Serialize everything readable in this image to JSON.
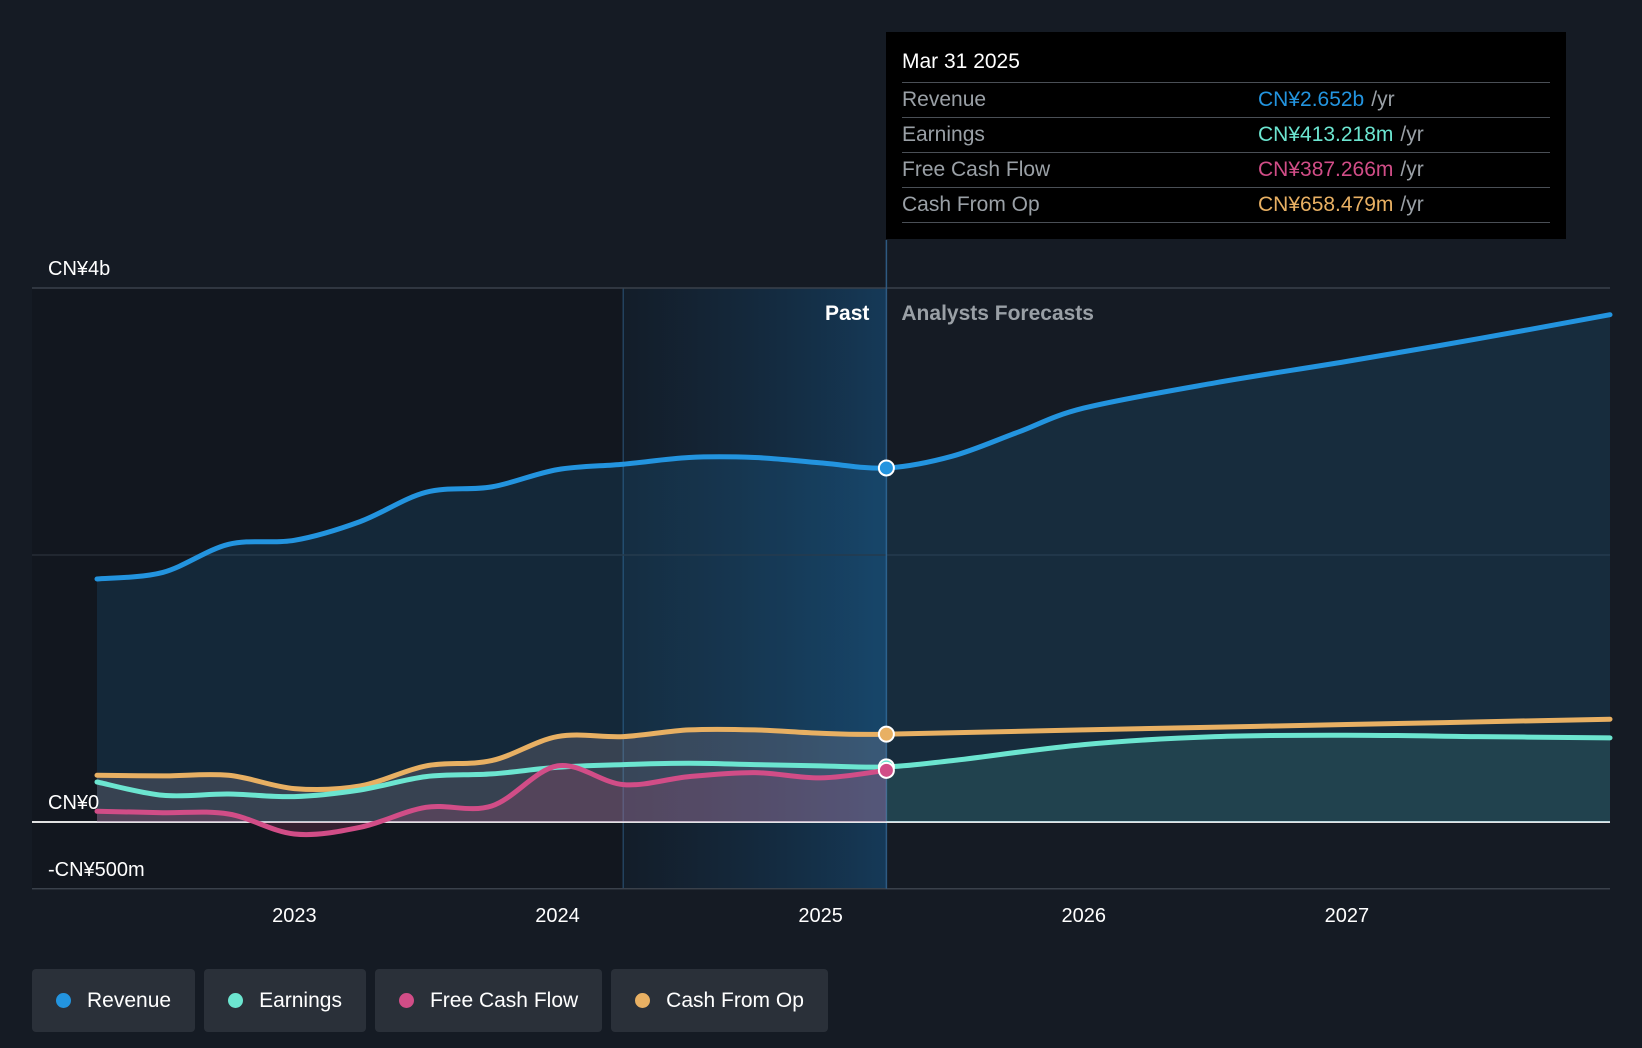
{
  "tooltip": {
    "date": "Mar 31 2025",
    "rows": [
      {
        "label": "Revenue",
        "value": "CN¥2.652b",
        "unit": "/yr",
        "color": "#2394df"
      },
      {
        "label": "Earnings",
        "value": "CN¥413.218m",
        "unit": "/yr",
        "color": "#6ce5d0"
      },
      {
        "label": "Free Cash Flow",
        "value": "CN¥387.266m",
        "unit": "/yr",
        "color": "#d14d87"
      },
      {
        "label": "Cash From Op",
        "value": "CN¥658.479m",
        "unit": "/yr",
        "color": "#e8b063"
      }
    ]
  },
  "legend": [
    {
      "label": "Revenue",
      "color": "#2394df"
    },
    {
      "label": "Earnings",
      "color": "#6ce5d0"
    },
    {
      "label": "Free Cash Flow",
      "color": "#d14d87"
    },
    {
      "label": "Cash From Op",
      "color": "#e8b063"
    }
  ],
  "chart_data": {
    "type": "line",
    "title": "",
    "past_label": "Past",
    "forecast_label": "Analysts Forecasts",
    "divider_x": 2025.25,
    "highlight_start_x": 2024.25,
    "xlim": [
      2022.25,
      2028.0
    ],
    "ylim": [
      -500,
      4000
    ],
    "y_labels": [
      {
        "value": 4000,
        "text": "CN¥4b"
      },
      {
        "value": 0,
        "text": "CN¥0"
      },
      {
        "value": -500,
        "text": "-CN¥500m"
      }
    ],
    "x_ticks": [
      {
        "value": 2023,
        "text": "2023"
      },
      {
        "value": 2024,
        "text": "2024"
      },
      {
        "value": 2025,
        "text": "2025"
      },
      {
        "value": 2026,
        "text": "2026"
      },
      {
        "value": 2027,
        "text": "2027"
      }
    ],
    "series": [
      {
        "name": "Revenue",
        "color": "#2394df",
        "past": {
          "x": [
            2022.25,
            2022.5,
            2022.75,
            2023.0,
            2023.25,
            2023.5,
            2023.75,
            2024.0,
            2024.25,
            2024.5,
            2024.75,
            2025.0,
            2025.25
          ],
          "y": [
            1820,
            1870,
            2080,
            2110,
            2250,
            2470,
            2510,
            2640,
            2680,
            2730,
            2730,
            2690,
            2652
          ]
        },
        "forecast": {
          "x": [
            2025.25,
            2025.5,
            2025.75,
            2026.0,
            2026.5,
            2027.0,
            2027.5,
            2028.0
          ],
          "y": [
            2652,
            2740,
            2920,
            3100,
            3290,
            3450,
            3620,
            3800
          ]
        }
      },
      {
        "name": "Cash From Op",
        "color": "#e8b063",
        "past": {
          "x": [
            2022.25,
            2022.5,
            2022.75,
            2023.0,
            2023.25,
            2023.5,
            2023.75,
            2024.0,
            2024.25,
            2024.5,
            2024.75,
            2025.0,
            2025.25
          ],
          "y": [
            350,
            345,
            350,
            250,
            270,
            420,
            460,
            640,
            640,
            690,
            690,
            665,
            658
          ]
        },
        "forecast": {
          "x": [
            2025.25,
            2026.0,
            2027.0,
            2028.0
          ],
          "y": [
            658,
            690,
            730,
            770
          ]
        }
      },
      {
        "name": "Earnings",
        "color": "#6ce5d0",
        "past": {
          "x": [
            2022.25,
            2022.5,
            2022.75,
            2023.0,
            2023.25,
            2023.5,
            2023.75,
            2024.0,
            2024.25,
            2024.5,
            2024.75,
            2025.0,
            2025.25
          ],
          "y": [
            300,
            200,
            210,
            190,
            240,
            340,
            360,
            410,
            430,
            440,
            430,
            420,
            413
          ]
        },
        "forecast": {
          "x": [
            2025.25,
            2025.5,
            2026.0,
            2026.5,
            2027.0,
            2027.5,
            2028.0
          ],
          "y": [
            413,
            460,
            580,
            640,
            650,
            640,
            630
          ]
        }
      },
      {
        "name": "Free Cash Flow",
        "color": "#d14d87",
        "past": {
          "x": [
            2022.25,
            2022.5,
            2022.75,
            2023.0,
            2023.25,
            2023.5,
            2023.75,
            2024.0,
            2024.25,
            2024.5,
            2024.75,
            2025.0,
            2025.25
          ],
          "y": [
            80,
            70,
            60,
            -90,
            -40,
            110,
            120,
            420,
            280,
            340,
            370,
            330,
            387
          ]
        }
      }
    ]
  }
}
